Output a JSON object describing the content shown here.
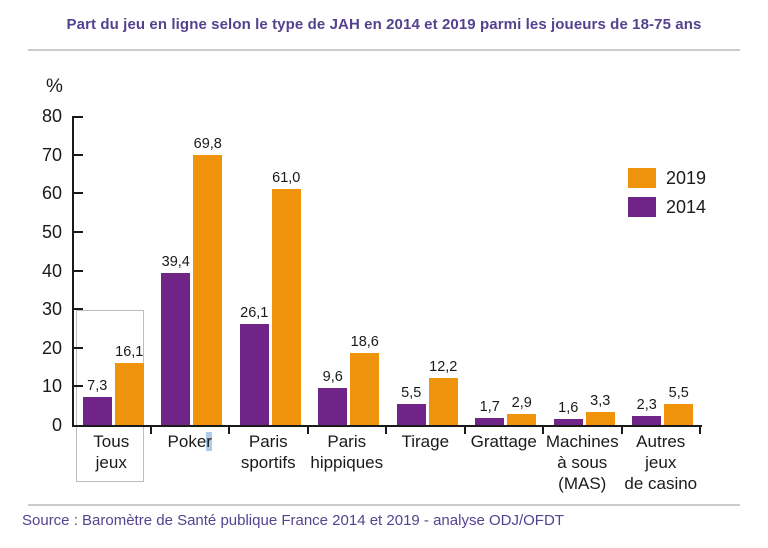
{
  "title": "Part du jeu en ligne selon le type de JAH en 2014 et 2019 parmi les joueurs de 18-75 ans",
  "source": "Source : Baromètre de Santé publique France 2014 et 2019 - analyse ODJ/OFDT",
  "y_axis": {
    "unit_label": "%",
    "ticks": [
      80,
      70,
      60,
      50,
      40,
      30,
      20,
      10,
      0
    ]
  },
  "legend": {
    "position": "upper right",
    "items": [
      {
        "label": "2019",
        "color": "#F0930C"
      },
      {
        "label": "2014",
        "color": "#702487"
      }
    ]
  },
  "colors": {
    "bar_2014": "#702487",
    "bar_2019": "#F0930C",
    "title_text": "#55428F",
    "axis": "#1A1A1A",
    "divider": "#CBCBCB",
    "highlight_box_border": "#BDBDBD",
    "text_selection": "#AECBE8"
  },
  "chart_data": {
    "type": "bar",
    "title": "Part du jeu en ligne selon le type de JAH en 2014 et 2019 parmi les joueurs de 18-75 ans",
    "ylabel": "%",
    "ylim": [
      0,
      80
    ],
    "grid": false,
    "legend_position": "upper right",
    "decimal_separator": ",",
    "categories": [
      {
        "label": "Tous jeux",
        "lines": [
          "Tous",
          "jeux"
        ]
      },
      {
        "label": "Poker",
        "lines": [
          "Poker"
        ],
        "cursor_selection": "r"
      },
      {
        "label": "Paris sportifs",
        "lines": [
          "Paris",
          "sportifs"
        ]
      },
      {
        "label": "Paris hippiques",
        "lines": [
          "Paris",
          "hippiques"
        ]
      },
      {
        "label": "Tirage",
        "lines": [
          "Tirage"
        ]
      },
      {
        "label": "Grattage",
        "lines": [
          "Grattage"
        ]
      },
      {
        "label": "Machines à sous (MAS)",
        "lines": [
          "Machines",
          "à sous",
          "(MAS)"
        ]
      },
      {
        "label": "Autres jeux de casino",
        "lines": [
          "Autres",
          "jeux",
          "de casino"
        ]
      }
    ],
    "series": [
      {
        "name": "2014",
        "color": "#702487",
        "values": [
          7.3,
          39.4,
          26.1,
          9.6,
          5.5,
          1.7,
          1.6,
          2.3
        ]
      },
      {
        "name": "2019",
        "color": "#F0930C",
        "values": [
          16.1,
          69.8,
          61.0,
          18.6,
          12.2,
          2.9,
          3.3,
          5.5
        ]
      }
    ],
    "highlighted_category": "Tous jeux"
  }
}
